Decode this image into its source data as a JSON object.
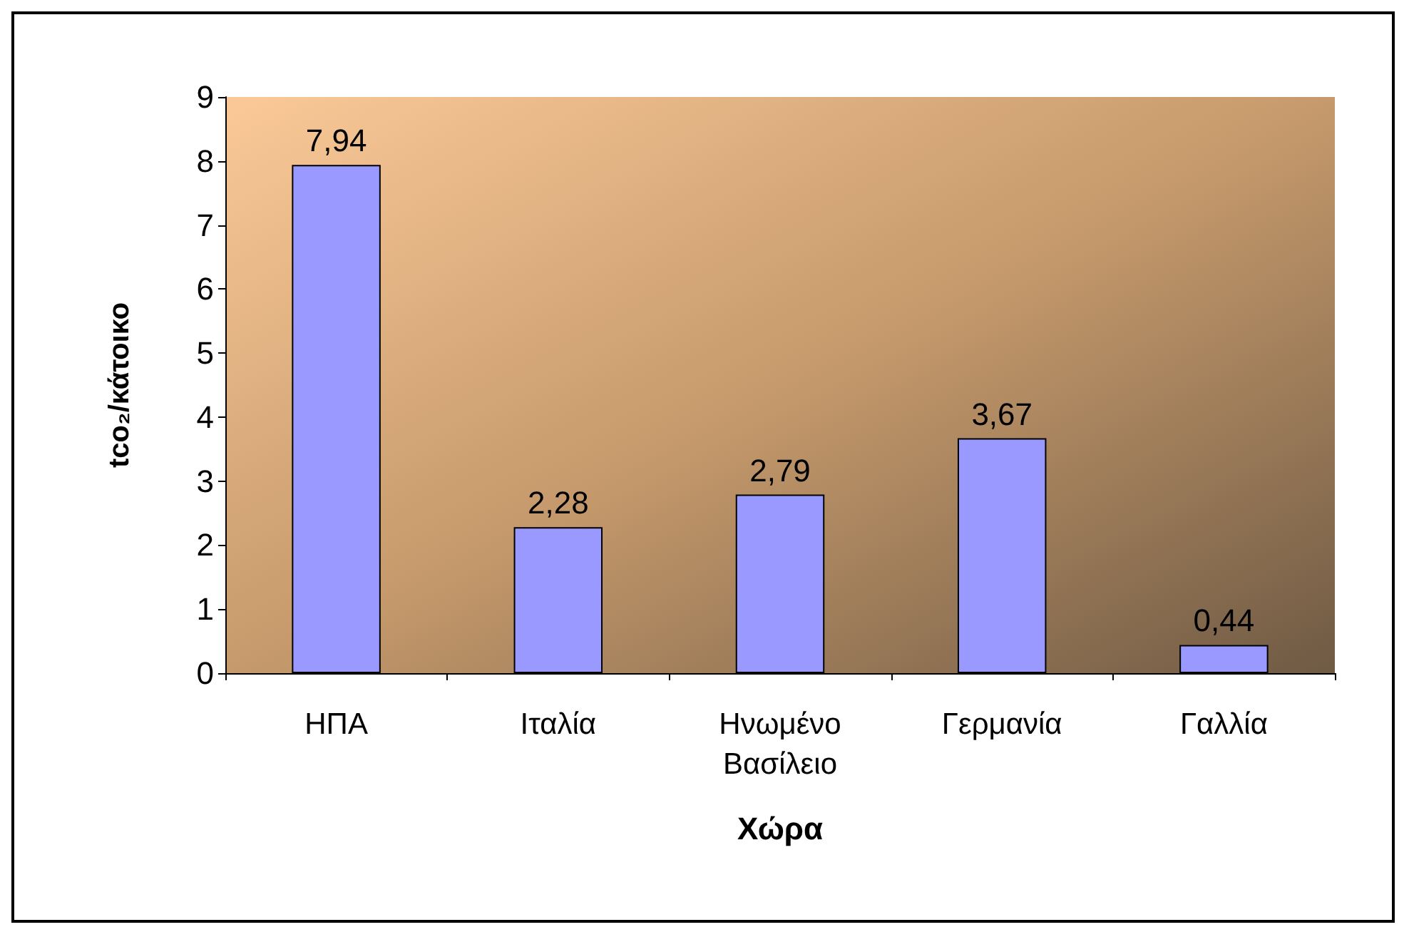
{
  "chart_data": {
    "type": "bar",
    "xlabel": "Χώρα",
    "ylabel": "tco₂/κάτοικο",
    "categories": [
      "ΗΠΑ",
      "Ιταλία",
      "Ηνωμένο\nΒασίλειο",
      "Γερμανία",
      "Γαλλία"
    ],
    "values": [
      7.94,
      2.28,
      2.79,
      3.67,
      0.44
    ],
    "value_labels": [
      "7,94",
      "2,28",
      "2,79",
      "3,67",
      "0,44"
    ],
    "color": "#9999ff",
    "ylim": [
      0,
      9
    ],
    "yticks": [
      0,
      1,
      2,
      3,
      4,
      5,
      6,
      7,
      8,
      9
    ],
    "grid": false
  }
}
